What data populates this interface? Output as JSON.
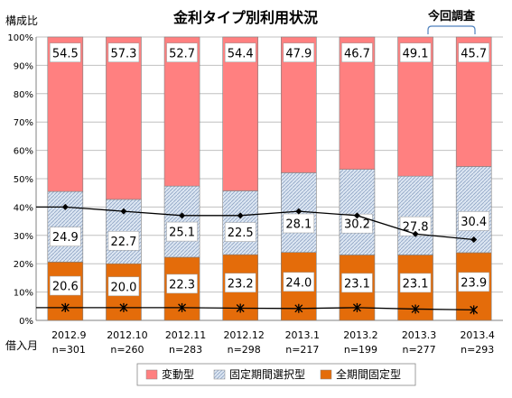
{
  "chart_data": {
    "type": "bar",
    "stacked": true,
    "title": "金利タイプ別利用状況",
    "ylabel": "構成比",
    "xlabel": "借入月",
    "ylim": [
      0,
      100
    ],
    "yticks": [
      "0%",
      "10%",
      "20%",
      "30%",
      "40%",
      "50%",
      "60%",
      "70%",
      "80%",
      "90%",
      "100%"
    ],
    "categories": [
      "2012.9",
      "2012.10",
      "2012.11",
      "2012.12",
      "2013.1",
      "2013.2",
      "2013.3",
      "2013.4"
    ],
    "sample_sizes": [
      "n=301",
      "n=260",
      "n=283",
      "n=298",
      "n=217",
      "n=199",
      "n=277",
      "n=293"
    ],
    "series": [
      {
        "name": "全期間固定型",
        "values": [
          20.6,
          20.0,
          22.3,
          23.2,
          24.0,
          23.1,
          23.1,
          23.9
        ],
        "color": "#e46c0a"
      },
      {
        "name": "固定期間選択型",
        "values": [
          24.9,
          22.7,
          25.1,
          22.5,
          28.1,
          30.2,
          27.8,
          30.4
        ],
        "color": "#c6d9f1"
      },
      {
        "name": "変動型",
        "values": [
          54.5,
          57.3,
          52.7,
          54.4,
          47.9,
          46.7,
          49.1,
          45.7
        ],
        "color": "#ff8080"
      }
    ],
    "line_diamond_values": [
      40.0,
      38.5,
      37.0,
      37.0,
      38.5,
      37.0,
      30.5,
      28.5
    ],
    "line_star_values": [
      4.5,
      4.5,
      4.5,
      4.3,
      4.2,
      4.5,
      4.0,
      3.7
    ],
    "annotation": "今回調査",
    "legend": [
      "変動型",
      "固定期間選択型",
      "全期間固定型"
    ],
    "legend_position": "bottom",
    "grid": true
  }
}
